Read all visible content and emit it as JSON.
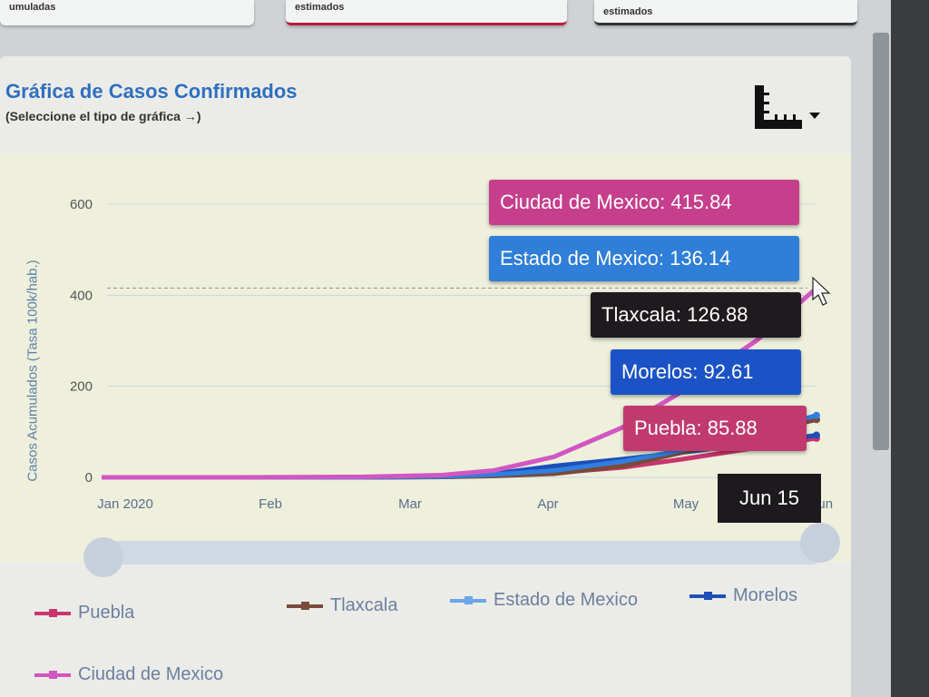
{
  "top_cards": [
    {
      "label": "umuladas"
    },
    {
      "label": "estimados"
    },
    {
      "label": "estimados"
    }
  ],
  "panel": {
    "title": "Gráfica de Casos Confirmados",
    "subtitle": "(Seleccione el tipo de gráfica →)"
  },
  "chart_data": {
    "type": "line",
    "title": "Gráfica de Casos Confirmados",
    "ylabel": "Casos Acumulados (Tasa 100k/hab.)",
    "xlabel": "",
    "ylim": [
      0,
      600
    ],
    "yticks": [
      0,
      200,
      400,
      600
    ],
    "xticks": [
      "Jan 2020",
      "Feb",
      "Mar",
      "Apr",
      "May",
      "Jun"
    ],
    "x": [
      "2020-01-01",
      "2020-02-01",
      "2020-03-01",
      "2020-03-20",
      "2020-04-01",
      "2020-04-15",
      "2020-05-01",
      "2020-05-15",
      "2020-06-01",
      "2020-06-15"
    ],
    "series": [
      {
        "name": "Ciudad de Mexico",
        "color": "#d256c2",
        "values": [
          0,
          0,
          1,
          5,
          15,
          45,
          110,
          190,
          300,
          415.84
        ]
      },
      {
        "name": "Estado de Mexico",
        "color": "#2e7fe0",
        "values": [
          0,
          0,
          0,
          2,
          6,
          15,
          35,
          60,
          100,
          136.14
        ]
      },
      {
        "name": "Tlaxcala",
        "color": "#7a4a3a",
        "values": [
          0,
          0,
          0,
          1,
          3,
          8,
          25,
          55,
          95,
          126.88
        ]
      },
      {
        "name": "Morelos",
        "color": "#1d4fb8",
        "values": [
          0,
          0,
          0,
          2,
          8,
          25,
          40,
          55,
          75,
          92.61
        ]
      },
      {
        "name": "Puebla",
        "color": "#c9356e",
        "values": [
          0,
          0,
          0,
          1,
          4,
          10,
          22,
          40,
          65,
          85.88
        ]
      }
    ],
    "tooltip": {
      "date": "Jun 15",
      "items": [
        {
          "text": "Ciudad de Mexico: 415.84",
          "color": "#c63f8c"
        },
        {
          "text": "Estado de Mexico: 136.14",
          "color": "#2f7ed8"
        },
        {
          "text": "Tlaxcala: 126.88",
          "color": "#1e1a1e"
        },
        {
          "text": "Morelos: 92.61",
          "color": "#1b53c6"
        },
        {
          "text": "Puebla: 85.88",
          "color": "#c13a6e"
        }
      ]
    },
    "legend": [
      {
        "name": "Puebla",
        "color": "#c9356e"
      },
      {
        "name": "Tlaxcala",
        "color": "#7a4a3a"
      },
      {
        "name": "Estado de Mexico",
        "color": "#6aa6e8"
      },
      {
        "name": "Morelos",
        "color": "#1d4fb8"
      },
      {
        "name": "Ciudad de Mexico",
        "color": "#d256c2"
      }
    ],
    "grid": true,
    "legend_position": "bottom"
  }
}
